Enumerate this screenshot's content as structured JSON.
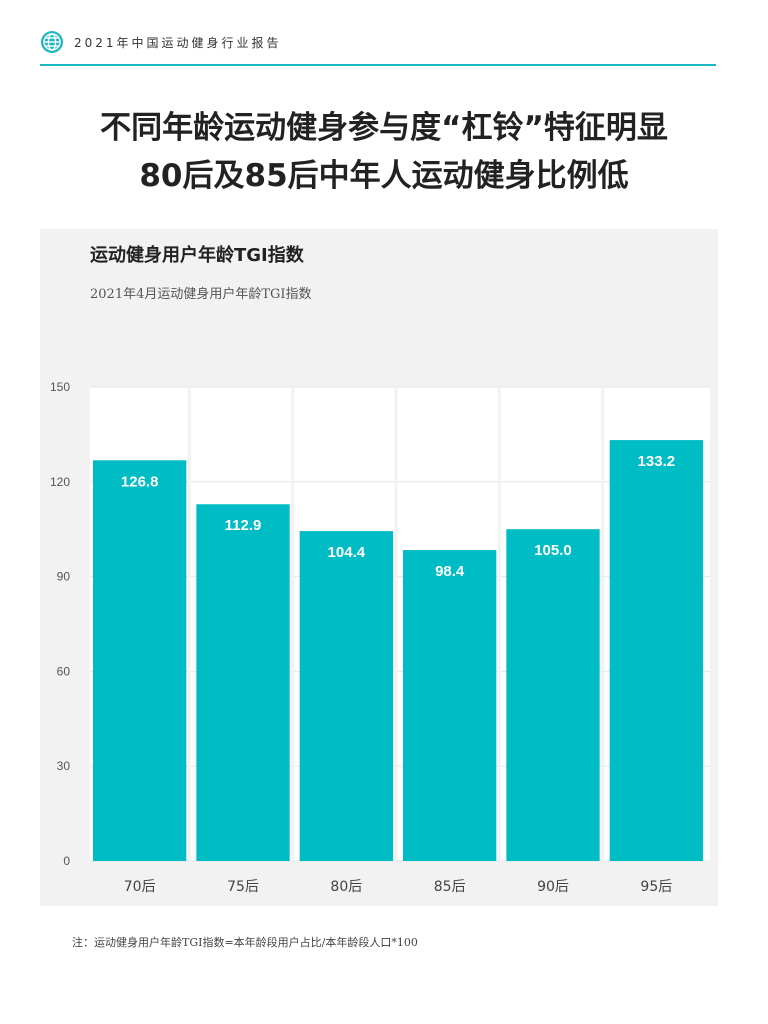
{
  "header": {
    "title": "2021年中国运动健身行业报告",
    "icon": "globe-icon",
    "accent_color": "#1bb8c4"
  },
  "headline": {
    "line1": "不同年龄运动健身参与度“杠铃”特征明显",
    "line2": "80后及85后中年人运动健身比例低"
  },
  "footnote": "注：运动健身用户年龄TGI指数=本年龄段用户占比/本年龄段人口*100",
  "chart_data": {
    "type": "bar",
    "title": "运动健身用户年龄TGI指数",
    "subtitle": "2021年4月运动健身用户年龄TGI指数",
    "categories": [
      "70后",
      "75后",
      "80后",
      "85后",
      "90后",
      "95后"
    ],
    "values": [
      126.8,
      112.9,
      104.4,
      98.4,
      105.0,
      133.2
    ],
    "value_labels": [
      "126.8",
      "112.9",
      "104.4",
      "98.4",
      "105.0",
      "133.2"
    ],
    "ylim": [
      0,
      150
    ],
    "yticks": [
      "0",
      "30",
      "60",
      "90",
      "120",
      "150"
    ],
    "grid": true,
    "bar_color": "#00bcc4",
    "xlabel": "",
    "ylabel": ""
  }
}
